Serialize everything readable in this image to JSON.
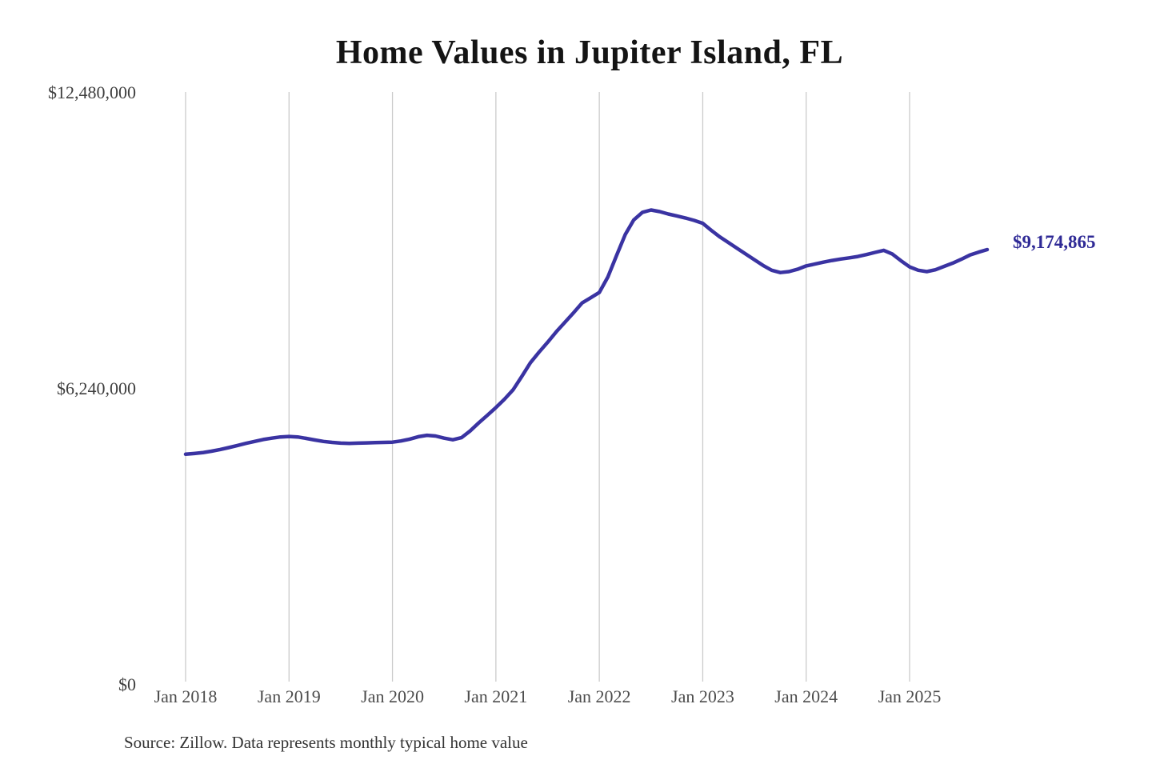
{
  "chart_data": {
    "type": "line",
    "title": "Home Values in Jupiter Island, FL",
    "source": "Source: Zillow. Data represents monthly typical home value",
    "annotation": {
      "text": "$9,174,865",
      "value": 9174865
    },
    "xlabel": "",
    "ylabel": "",
    "ylim": [
      0,
      12480000
    ],
    "grid": "vertical-only",
    "legend": "none",
    "x_ticks": [
      "Jan 2018",
      "Jan 2019",
      "Jan 2020",
      "Jan 2021",
      "Jan 2022",
      "Jan 2023",
      "Jan 2024",
      "Jan 2025"
    ],
    "y_ticks": [
      {
        "label": "$12,480,000",
        "value": 12480000
      },
      {
        "label": "$6,240,000",
        "value": 6240000
      },
      {
        "label": "$0",
        "value": 0
      }
    ],
    "series": [
      {
        "name": "Monthly typical home value",
        "color": "#3a33a2",
        "x_start": "2018-01",
        "x_end": "2025-10",
        "x_interval": "1 month",
        "values": [
          4860000,
          4875000,
          4895000,
          4925000,
          4960000,
          5000000,
          5045000,
          5090000,
          5130000,
          5170000,
          5200000,
          5225000,
          5235000,
          5225000,
          5195000,
          5160000,
          5130000,
          5110000,
          5095000,
          5090000,
          5095000,
          5100000,
          5105000,
          5110000,
          5115000,
          5140000,
          5180000,
          5230000,
          5260000,
          5245000,
          5200000,
          5165000,
          5210000,
          5350000,
          5520000,
          5680000,
          5845000,
          6020000,
          6220000,
          6500000,
          6790000,
          7010000,
          7220000,
          7440000,
          7640000,
          7840000,
          8050000,
          8160000,
          8270000,
          8600000,
          9050000,
          9490000,
          9800000,
          9960000,
          10010000,
          9975000,
          9925000,
          9885000,
          9840000,
          9790000,
          9730000,
          9580000,
          9440000,
          9320000,
          9200000,
          9080000,
          8960000,
          8840000,
          8740000,
          8690000,
          8710000,
          8760000,
          8830000,
          8870000,
          8910000,
          8945000,
          8975000,
          9000000,
          9030000,
          9070000,
          9115000,
          9160000,
          9080000,
          8940000,
          8810000,
          8740000,
          8710000,
          8750000,
          8820000,
          8890000,
          8970000,
          9060000,
          9120000,
          9174865
        ]
      }
    ],
    "colors": {
      "line": "#3a33a2",
      "annotation": "#2f2a96",
      "grid": "#cbcbcb",
      "title": "#141414",
      "y_axis_labels": "#3e3e3e",
      "x_axis_labels": "#4c4c4c",
      "source": "#333333",
      "background": "#ffffff"
    }
  }
}
